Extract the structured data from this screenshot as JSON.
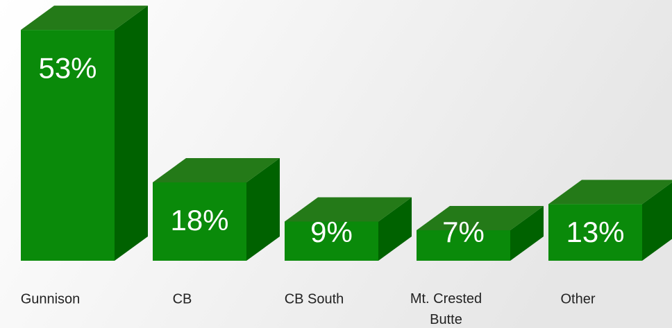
{
  "chart_data": {
    "type": "bar3d",
    "categories": [
      "Gunnison",
      "CB",
      "CB South",
      "Mt. Crested Butte",
      "Other"
    ],
    "values": [
      53,
      18,
      9,
      7,
      13
    ],
    "value_labels": [
      "53%",
      "18%",
      "9%",
      "7%",
      "13%"
    ],
    "color": "#0a8a0a"
  }
}
